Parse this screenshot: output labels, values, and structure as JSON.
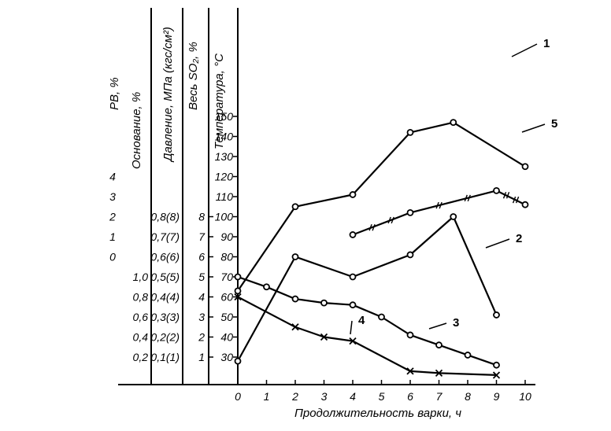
{
  "chart_data": {
    "type": "line",
    "xlabel": "Продолжительность варки, ч",
    "x_ticks": [
      "0",
      "1",
      "2",
      "3",
      "4",
      "5",
      "6",
      "7",
      "8",
      "9",
      "10"
    ],
    "xlim": [
      0,
      10
    ],
    "y_axes": [
      {
        "id": "rv",
        "label": "РВ, %",
        "ticks": [
          "0",
          "1",
          "2",
          "3",
          "4"
        ]
      },
      {
        "id": "base",
        "label": "Основание, %",
        "ticks": [
          "0,2",
          "0,4",
          "0,6",
          "0,8",
          "1,0"
        ]
      },
      {
        "id": "pressure",
        "label": "Давление, МПа (кгс/см²)",
        "ticks": [
          "0,1(1)",
          "0,2(2)",
          "0,3(3)",
          "0,4(4)",
          "0,5(5)",
          "0,6(6)",
          "0,7(7)",
          "0,8(8)"
        ]
      },
      {
        "id": "so2",
        "label": "Весь SO₂, %",
        "ticks": [
          "1",
          "2",
          "3",
          "4",
          "5",
          "6",
          "7",
          "8"
        ]
      },
      {
        "id": "temp",
        "label": "Температура, °С",
        "ticks": [
          "30",
          "40",
          "50",
          "60",
          "70",
          "80",
          "90",
          "100",
          "110",
          "120",
          "130",
          "140",
          "150"
        ],
        "ylim": [
          20,
          150
        ]
      }
    ],
    "series": [
      {
        "name": "1",
        "axis": "temp",
        "marker": "circle",
        "x": [
          0,
          2,
          4,
          6,
          7.5,
          10
        ],
        "y": [
          63,
          105,
          111,
          142,
          147,
          125
        ]
      },
      {
        "name": "2",
        "axis": "temp",
        "marker": "circle",
        "x": [
          0,
          2,
          4,
          6,
          7.5,
          9
        ],
        "y": [
          28,
          80,
          70,
          81,
          100,
          51
        ]
      },
      {
        "name": "3",
        "axis": "temp",
        "marker": "circle",
        "x": [
          0,
          1,
          2,
          3,
          4,
          5,
          6,
          7,
          8,
          9
        ],
        "y": [
          70,
          65,
          59,
          57,
          56,
          50,
          41,
          36,
          31,
          26
        ]
      },
      {
        "name": "4",
        "axis": "temp",
        "marker": "x",
        "x": [
          0,
          2,
          3,
          4,
          6,
          7,
          9
        ],
        "y": [
          60,
          45,
          40,
          38,
          23,
          22,
          21
        ]
      },
      {
        "name": "5",
        "axis": "temp",
        "marker": "circle-dash",
        "x": [
          4,
          6,
          9,
          10
        ],
        "y": [
          91,
          102,
          113,
          106
        ]
      }
    ]
  }
}
